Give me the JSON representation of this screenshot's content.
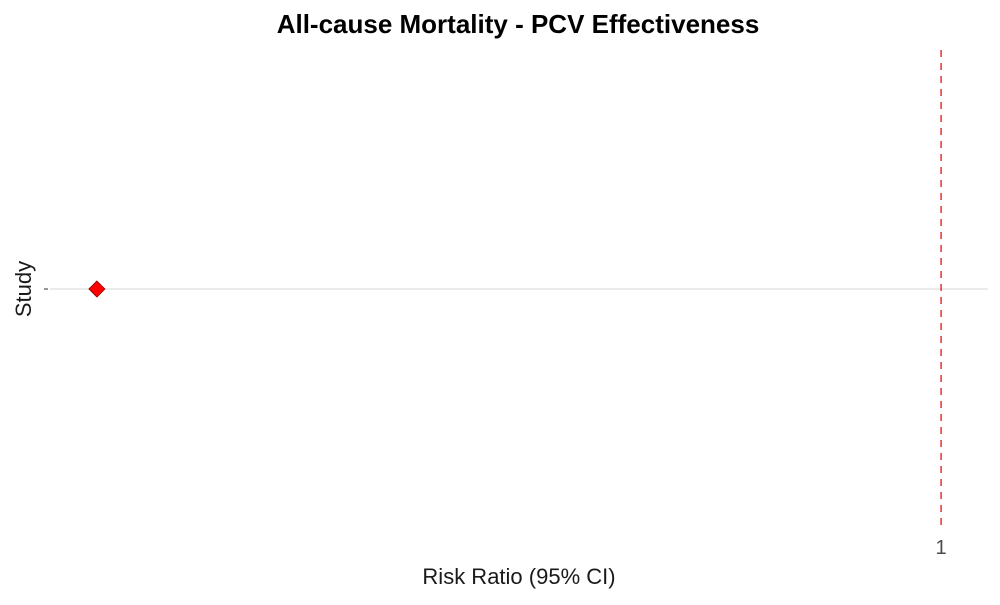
{
  "chart_data": {
    "type": "scatter",
    "title": "All-cause Mortality - PCV Effectiveness",
    "xlabel": "Risk Ratio (95% CI)",
    "ylabel": "Study",
    "x_ticks": [
      "1"
    ],
    "reference_line": {
      "x": 1,
      "style": "dashed",
      "color": "#e8312c"
    },
    "xlim": [
      0.05,
      1.05
    ],
    "grid": "horizontal",
    "points": [
      {
        "x": 0.1,
        "y": 0,
        "shape": "diamond",
        "color": "#ff0000"
      }
    ]
  }
}
